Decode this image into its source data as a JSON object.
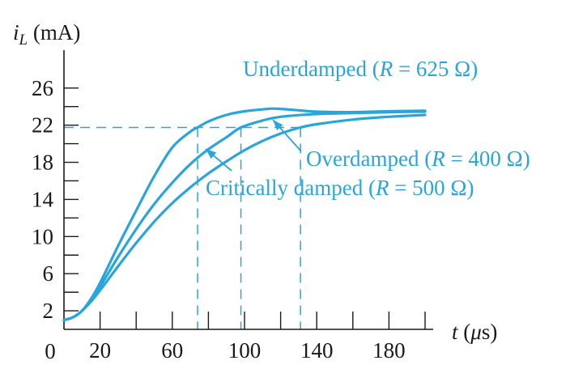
{
  "chart_data": {
    "type": "line",
    "title": "",
    "ylabel": {
      "symbol": "i",
      "sub": "L",
      "unit": " (mA)"
    },
    "xlabel": {
      "symbol": "t",
      "unit_open": " (",
      "mu": "μ",
      "unit_rest": "s)"
    },
    "xlim": [
      0,
      205
    ],
    "ylim": [
      0,
      30
    ],
    "y_ticks": [
      2,
      6,
      10,
      14,
      18,
      22,
      26
    ],
    "y_minor_ticks": [
      4,
      8,
      12,
      16,
      20,
      24
    ],
    "x_ticks": [
      20,
      60,
      100,
      140,
      180
    ],
    "x_minor_ticks": [
      40,
      80,
      120,
      160,
      200
    ],
    "origin_label": "0",
    "reference_level": 21.75,
    "reference_times": [
      74,
      98,
      131
    ],
    "series": [
      {
        "name": "Underdamped (R = 625 Ω)",
        "x": [
          0,
          5,
          10,
          15,
          20,
          30,
          40,
          50,
          60,
          70,
          74,
          80,
          90,
          100,
          110,
          115,
          120,
          130,
          140,
          160,
          180,
          200
        ],
        "y": [
          1.0,
          1.3,
          2.0,
          3.3,
          5.0,
          9.0,
          12.8,
          16.5,
          19.6,
          21.3,
          21.75,
          22.4,
          23.1,
          23.5,
          23.7,
          23.78,
          23.75,
          23.6,
          23.45,
          23.4,
          23.5,
          23.55
        ]
      },
      {
        "name": "Critically damped (R = 500 Ω)",
        "x": [
          0,
          5,
          10,
          15,
          20,
          30,
          40,
          50,
          60,
          70,
          80,
          90,
          98,
          110,
          120,
          140,
          160,
          180,
          200
        ],
        "y": [
          1.0,
          1.3,
          2.0,
          3.2,
          4.6,
          7.8,
          10.8,
          13.5,
          15.8,
          17.8,
          19.4,
          20.7,
          21.75,
          22.5,
          22.9,
          23.2,
          23.3,
          23.4,
          23.45
        ]
      },
      {
        "name": "Overdamped (R = 400 Ω)",
        "x": [
          0,
          5,
          10,
          15,
          20,
          30,
          40,
          50,
          60,
          70,
          80,
          90,
          100,
          110,
          120,
          131,
          140,
          160,
          180,
          200
        ],
        "y": [
          1.0,
          1.3,
          2.0,
          3.0,
          4.2,
          6.8,
          9.3,
          11.6,
          13.6,
          15.3,
          16.8,
          18.1,
          19.3,
          20.3,
          21.1,
          21.75,
          22.1,
          22.6,
          22.9,
          23.1
        ]
      }
    ],
    "annotations": [
      {
        "text_pre": "Underdamped (",
        "var": "R",
        "text_post": " = 625 Ω)"
      },
      {
        "text_pre": "Overdamped (",
        "var": "R",
        "text_post": " = 400 Ω)"
      },
      {
        "text_pre": "Critically damped (",
        "var": "R",
        "text_post": " = 500 Ω)"
      }
    ],
    "colors": {
      "curve": "#2aa5dc",
      "axis": "#1a1a1a"
    }
  }
}
